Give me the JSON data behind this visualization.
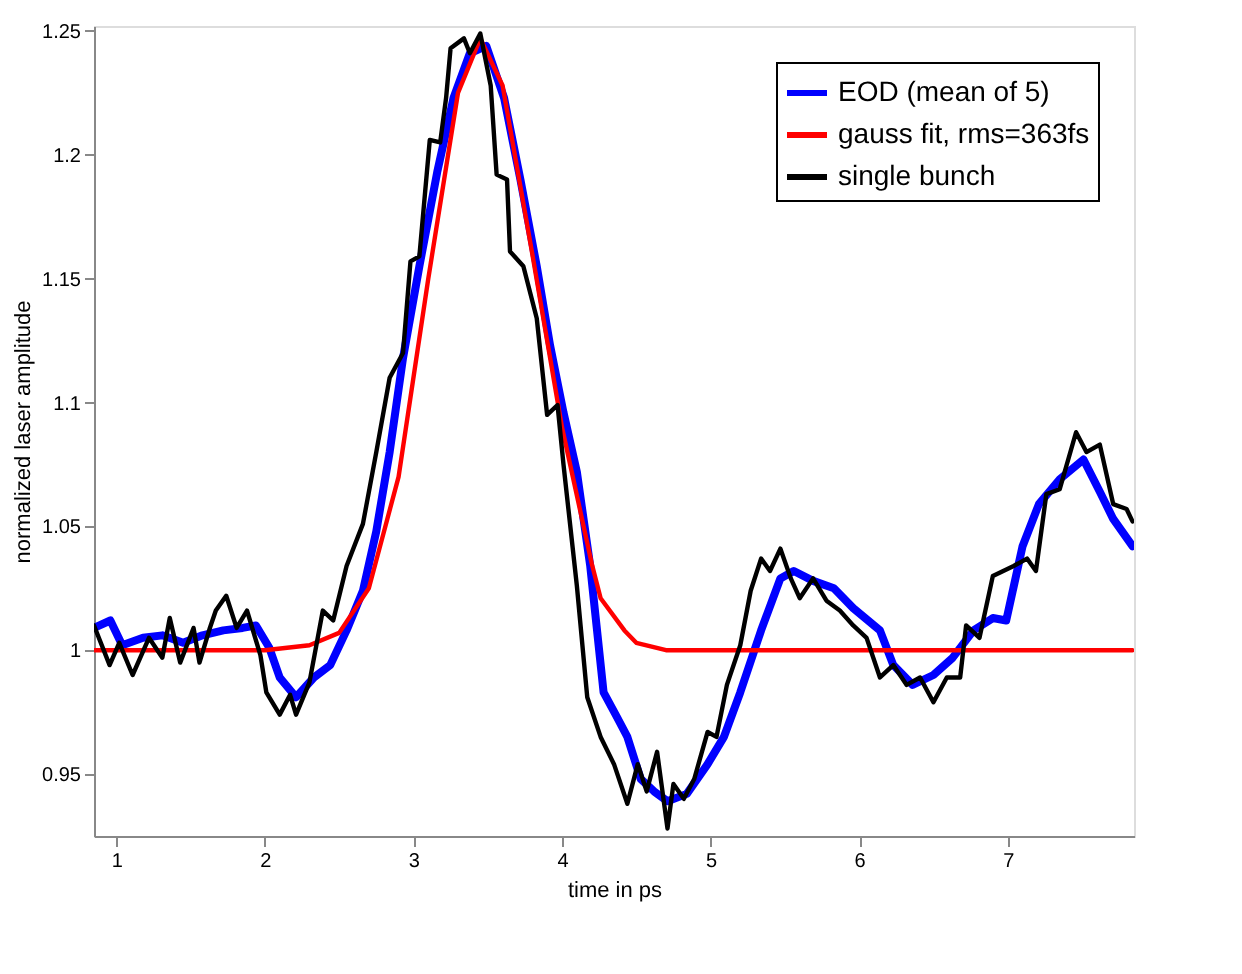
{
  "chart_data": {
    "type": "line",
    "xlabel": "time in ps",
    "ylabel": "normalized laser amplitude",
    "xlim": [
      0.85,
      7.85
    ],
    "ylim": [
      0.925,
      1.252
    ],
    "xticks": [
      1,
      2,
      3,
      4,
      5,
      6,
      7
    ],
    "yticks": [
      0.95,
      1,
      1.05,
      1.1,
      1.15,
      1.2,
      1.25
    ],
    "grid": false,
    "legend": "top right",
    "line_style": "solid",
    "series": [
      {
        "name": "EOD (mean of 5)",
        "color": "#0000ff",
        "x": [
          0.85,
          0.96,
          1.04,
          1.18,
          1.31,
          1.45,
          1.58,
          1.72,
          1.85,
          1.94,
          2.03,
          2.1,
          2.21,
          2.33,
          2.44,
          2.55,
          2.66,
          2.75,
          2.84,
          2.93,
          3.04,
          3.16,
          3.27,
          3.38,
          3.49,
          3.61,
          3.72,
          3.83,
          3.92,
          4.01,
          4.1,
          4.19,
          4.28,
          4.37,
          4.44,
          4.53,
          4.62,
          4.71,
          4.84,
          4.98,
          5.09,
          5.2,
          5.34,
          5.47,
          5.56,
          5.69,
          5.83,
          5.96,
          6.14,
          6.23,
          6.36,
          6.5,
          6.63,
          6.77,
          6.9,
          6.99,
          7.1,
          7.21,
          7.35,
          7.51,
          7.62,
          7.71,
          7.84
        ],
        "values": [
          1.009,
          1.012,
          1.002,
          1.005,
          1.006,
          1.003,
          1.006,
          1.008,
          1.009,
          1.01,
          1.001,
          0.989,
          0.981,
          0.989,
          0.994,
          1.008,
          1.024,
          1.048,
          1.08,
          1.118,
          1.155,
          1.193,
          1.223,
          1.241,
          1.244,
          1.223,
          1.19,
          1.155,
          1.123,
          1.096,
          1.072,
          1.034,
          0.983,
          0.973,
          0.965,
          0.948,
          0.943,
          0.939,
          0.942,
          0.954,
          0.965,
          0.983,
          1.008,
          1.029,
          1.032,
          1.028,
          1.025,
          1.017,
          1.008,
          0.994,
          0.986,
          0.99,
          0.997,
          1.008,
          1.013,
          1.012,
          1.042,
          1.059,
          1.069,
          1.077,
          1.064,
          1.053,
          1.042
        ]
      },
      {
        "name": "gauss fit, rms=363fs",
        "color": "#ff0000",
        "x": [
          0.85,
          2.0,
          2.3,
          2.5,
          2.7,
          2.9,
          3.1,
          3.3,
          3.45,
          3.6,
          3.8,
          4.0,
          4.2,
          4.26,
          4.42,
          4.5,
          4.7,
          5.0,
          7.84
        ],
        "values": [
          1.0,
          1.0,
          1.002,
          1.007,
          1.025,
          1.07,
          1.15,
          1.225,
          1.247,
          1.228,
          1.16,
          1.09,
          1.035,
          1.021,
          1.008,
          1.003,
          1.0,
          1.0,
          1.0
        ]
      },
      {
        "name": "single bunch",
        "color": "#000000",
        "x": [
          0.85,
          0.955,
          1.02,
          1.11,
          1.22,
          1.31,
          1.36,
          1.43,
          1.52,
          1.56,
          1.63,
          1.67,
          1.74,
          1.81,
          1.88,
          1.97,
          2.01,
          2.1,
          2.17,
          2.21,
          2.3,
          2.39,
          2.46,
          2.55,
          2.66,
          2.75,
          2.84,
          2.93,
          2.98,
          3.04,
          3.11,
          3.18,
          3.22,
          3.25,
          3.34,
          3.38,
          3.45,
          3.52,
          3.56,
          3.63,
          3.65,
          3.74,
          3.83,
          3.9,
          3.97,
          4.01,
          4.1,
          4.17,
          4.26,
          4.35,
          4.44,
          4.51,
          4.57,
          4.64,
          4.71,
          4.75,
          4.82,
          4.89,
          4.98,
          5.04,
          5.11,
          5.2,
          5.27,
          5.34,
          5.4,
          5.47,
          5.54,
          5.6,
          5.69,
          5.78,
          5.87,
          5.96,
          6.05,
          6.14,
          6.23,
          6.32,
          6.41,
          6.5,
          6.59,
          6.68,
          6.72,
          6.81,
          6.9,
          7.04,
          7.13,
          7.19,
          7.26,
          7.35,
          7.46,
          7.53,
          7.62,
          7.71,
          7.8,
          7.84
        ],
        "values": [
          1.01,
          0.994,
          1.003,
          0.99,
          1.005,
          0.997,
          1.013,
          0.995,
          1.009,
          0.995,
          1.009,
          1.016,
          1.022,
          1.009,
          1.016,
          0.998,
          0.983,
          0.974,
          0.982,
          0.974,
          0.987,
          1.016,
          1.012,
          1.034,
          1.051,
          1.08,
          1.11,
          1.12,
          1.157,
          1.159,
          1.206,
          1.205,
          1.223,
          1.243,
          1.247,
          1.241,
          1.249,
          1.228,
          1.192,
          1.19,
          1.161,
          1.155,
          1.134,
          1.095,
          1.099,
          1.075,
          1.026,
          0.981,
          0.965,
          0.954,
          0.938,
          0.954,
          0.943,
          0.959,
          0.928,
          0.946,
          0.94,
          0.948,
          0.967,
          0.965,
          0.986,
          1.002,
          1.024,
          1.037,
          1.032,
          1.041,
          1.029,
          1.021,
          1.029,
          1.02,
          1.016,
          1.01,
          1.005,
          0.989,
          0.994,
          0.986,
          0.989,
          0.979,
          0.989,
          0.989,
          1.01,
          1.005,
          1.03,
          1.034,
          1.037,
          1.032,
          1.063,
          1.065,
          1.088,
          1.08,
          1.083,
          1.059,
          1.057,
          1.052
        ]
      }
    ]
  }
}
